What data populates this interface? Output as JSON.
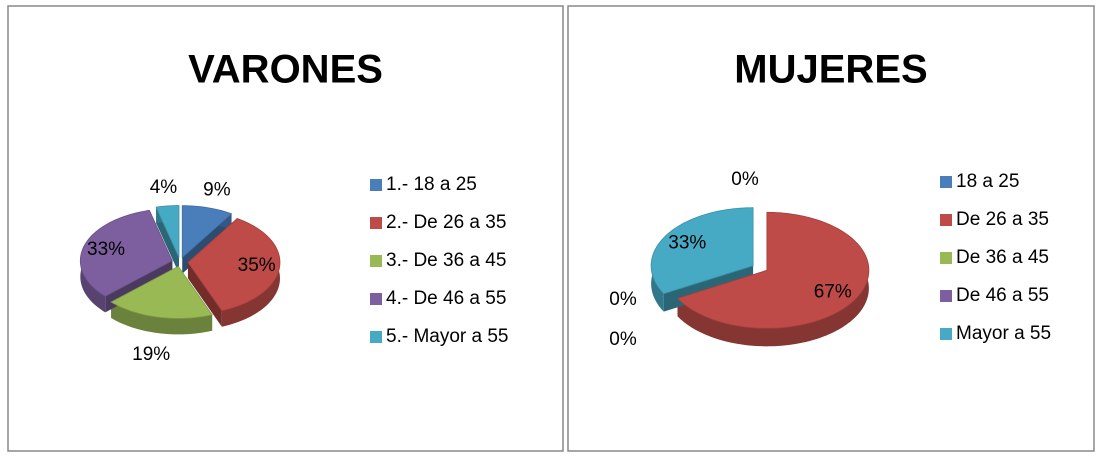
{
  "chart_data": [
    {
      "type": "pie",
      "title": "VARONES",
      "categories": [
        "1.- 18 a  25",
        "2.- De 26 a 35",
        "3.- De 36 a 45",
        "4.- De 46 a 55",
        "5.- Mayor a 55"
      ],
      "values": [
        9,
        35,
        19,
        33,
        4
      ],
      "value_labels": [
        "9%",
        "35%",
        "19%",
        "33%",
        "4%"
      ],
      "colors": [
        "#4a7ebb",
        "#be4b48",
        "#98b954",
        "#7d5fa0",
        "#46aac5"
      ],
      "legend": "right"
    },
    {
      "type": "pie",
      "title": "MUJERES",
      "categories": [
        "18 a 25",
        "De 26 a 35",
        "De 36 a 45",
        "De 46 a 55",
        "Mayor a 55"
      ],
      "values": [
        0,
        67,
        0,
        0,
        33
      ],
      "value_labels": [
        "0%",
        "67%",
        "0%",
        "0%",
        "33%"
      ],
      "colors": [
        "#4a7ebb",
        "#be4b48",
        "#98b954",
        "#7d5fa0",
        "#46aac5"
      ],
      "legend": "right"
    }
  ]
}
